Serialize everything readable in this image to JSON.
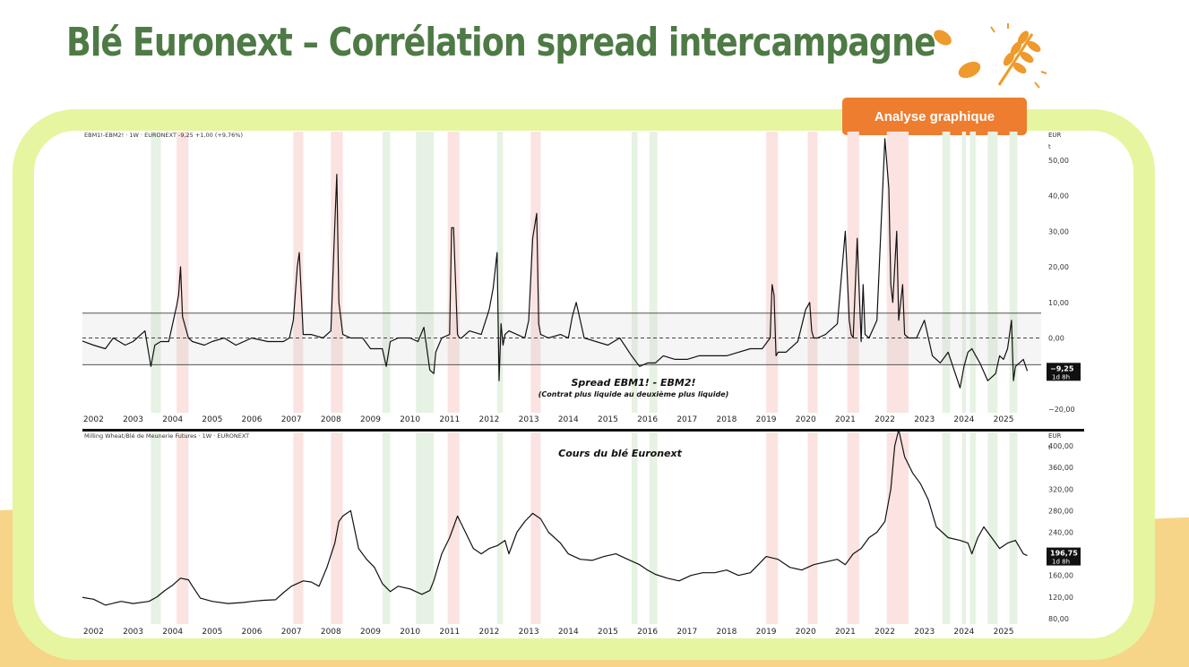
{
  "slide": {
    "title": "Blé Euronext – Corrélation spread intercampagne",
    "badge": "Analyse graphique",
    "colors": {
      "title": "#4e7a45",
      "frame": "#e6f5a0",
      "badge": "#ee7d2f",
      "wave": "#f7d588",
      "logo": "#ee9a2c"
    },
    "icons": [
      "leaf-icon",
      "wheat-icon"
    ]
  },
  "chart_data": [
    {
      "type": "line",
      "header": "EBM1!-EBM2! · 1W · EURONEXT  -9,25  +1,00 (+9,76%)",
      "title": "Spread EBM1! - EBM2!",
      "subtitle": "(Contrat plus liquide au deuxième plus liquide)",
      "unit_label": "EUR",
      "unit_sub": "t",
      "ylim": [
        -21,
        58
      ],
      "yticks": [
        50,
        40,
        30,
        20,
        10,
        0,
        -20
      ],
      "ytick_labels": [
        "50,00",
        "40,00",
        "30,00",
        "20,00",
        "10,00",
        "0,00",
        "−20,00"
      ],
      "band": [
        -7.5,
        7
      ],
      "zero_line": 0,
      "last_label": "−9,25",
      "last_sub": "1d 8h",
      "last_value": -9.25,
      "series": [
        {
          "x": [
            2001.5,
            2002.0,
            2002.3,
            2002.5,
            2002.8,
            2003.0,
            2003.3,
            2003.45,
            2003.55,
            2003.7,
            2003.9,
            2004.1,
            2004.15,
            2004.2,
            2004.25,
            2004.3,
            2004.4,
            2004.5,
            2004.8,
            2005.0,
            2005.3,
            2005.6,
            2006.0,
            2006.4,
            2006.8,
            2006.95,
            2007.05,
            2007.15,
            2007.2,
            2007.3,
            2007.5,
            2007.8,
            2008.0,
            2008.1,
            2008.15,
            2008.2,
            2008.3,
            2008.5,
            2008.8,
            2009.0,
            2009.3,
            2009.4,
            2009.5,
            2009.7,
            2010.0,
            2010.2,
            2010.35,
            2010.5,
            2010.6,
            2010.65,
            2010.8,
            2011.0,
            2011.05,
            2011.1,
            2011.2,
            2011.25,
            2011.3,
            2011.5,
            2011.8,
            2012.0,
            2012.1,
            2012.2,
            2012.25,
            2012.3,
            2012.35,
            2012.4,
            2012.5,
            2012.7,
            2012.9,
            2013.0,
            2013.1,
            2013.2,
            2013.25,
            2013.3,
            2013.5,
            2013.8,
            2014.0,
            2014.1,
            2014.2,
            2014.4,
            2014.7,
            2015.0,
            2015.3,
            2015.6,
            2015.8,
            2016.0,
            2016.2,
            2016.4,
            2016.7,
            2017.0,
            2017.3,
            2017.6,
            2018.0,
            2018.3,
            2018.6,
            2018.9,
            2019.1,
            2019.15,
            2019.2,
            2019.25,
            2019.3,
            2019.5,
            2019.8,
            2020.0,
            2020.1,
            2020.15,
            2020.2,
            2020.3,
            2020.5,
            2020.8,
            2021.0,
            2021.1,
            2021.15,
            2021.2,
            2021.3,
            2021.4,
            2021.45,
            2021.5,
            2021.6,
            2021.8,
            2022.0,
            2022.1,
            2022.15,
            2022.2,
            2022.3,
            2022.35,
            2022.45,
            2022.5,
            2022.6,
            2022.8,
            2023.0,
            2023.2,
            2023.4,
            2023.6,
            2023.9,
            2024.0,
            2024.1,
            2024.2,
            2024.3,
            2024.4,
            2024.6,
            2024.8,
            2024.9,
            2025.0,
            2025.1,
            2025.2,
            2025.25,
            2025.3,
            2025.4,
            2025.5,
            2025.6
          ],
          "y": [
            0,
            -2,
            -3,
            0,
            -2,
            -1,
            2,
            -8,
            -2,
            -1,
            -1,
            9,
            12,
            20,
            6,
            4,
            0,
            -1,
            -2,
            -1,
            0,
            -2,
            0,
            -1,
            -1,
            0,
            5,
            20,
            24,
            1,
            1,
            0,
            2,
            32,
            46,
            10,
            1,
            0,
            0,
            -3,
            -3,
            -8,
            -1,
            0,
            0,
            -1,
            3,
            -9,
            -10,
            -4,
            0,
            1,
            31,
            31,
            1,
            0,
            0,
            2,
            1,
            8,
            14,
            24,
            -12,
            4,
            -2,
            1,
            2,
            1,
            0,
            5,
            28,
            35,
            4,
            1,
            0,
            1,
            0,
            6,
            10,
            0,
            -1,
            -2,
            0,
            -5,
            -8,
            -7,
            -7,
            -5,
            -6,
            -6,
            -5,
            -5,
            -5,
            -4,
            -3,
            -3,
            0,
            15,
            12,
            -5,
            -4,
            -4,
            -1,
            8,
            10,
            2,
            0,
            0,
            1,
            4,
            30,
            5,
            1,
            0,
            28,
            -1,
            15,
            1,
            0,
            5,
            56,
            42,
            15,
            10,
            30,
            5,
            15,
            1,
            0,
            0,
            5,
            -5,
            -7,
            -4,
            -14,
            -8,
            -4,
            -3,
            -5,
            -7,
            -12,
            -10,
            -5,
            -6,
            -3,
            5,
            -12,
            -8,
            -7,
            -6,
            -9.25
          ]
        }
      ]
    },
    {
      "type": "line",
      "header": "Milling Wheat/Blé de Meunerie Futures · 1W · EURONEXT",
      "title": "Cours du blé Euronext",
      "unit_label": "EUR",
      "unit_sub": "t",
      "ylim": [
        70,
        425
      ],
      "yticks": [
        400,
        360,
        320,
        280,
        240,
        160,
        120,
        80
      ],
      "ytick_labels": [
        "400,00",
        "360,00",
        "320,00",
        "280,00",
        "240,00",
        "160,00",
        "120,00",
        "80,00"
      ],
      "last_label": "196,75",
      "last_sub": "1d 8h",
      "last_value": 196.75,
      "series": [
        {
          "x": [
            2001.5,
            2002.0,
            2002.3,
            2002.7,
            2003.0,
            2003.4,
            2003.6,
            2003.8,
            2004.0,
            2004.2,
            2004.4,
            2004.5,
            2004.7,
            2005.0,
            2005.4,
            2005.8,
            2006.0,
            2006.3,
            2006.6,
            2006.8,
            2007.0,
            2007.3,
            2007.5,
            2007.7,
            2007.9,
            2008.1,
            2008.2,
            2008.3,
            2008.5,
            2008.7,
            2008.9,
            2009.1,
            2009.3,
            2009.5,
            2009.7,
            2010.0,
            2010.3,
            2010.5,
            2010.6,
            2010.8,
            2011.0,
            2011.1,
            2011.2,
            2011.4,
            2011.6,
            2011.8,
            2012.0,
            2012.2,
            2012.4,
            2012.5,
            2012.7,
            2012.9,
            2013.1,
            2013.3,
            2013.5,
            2013.8,
            2014.0,
            2014.3,
            2014.6,
            2014.9,
            2015.2,
            2015.5,
            2015.8,
            2016.0,
            2016.2,
            2016.5,
            2016.8,
            2017.1,
            2017.4,
            2017.7,
            2018.0,
            2018.3,
            2018.6,
            2018.8,
            2019.0,
            2019.3,
            2019.6,
            2019.9,
            2020.2,
            2020.5,
            2020.8,
            2021.0,
            2021.2,
            2021.4,
            2021.6,
            2021.8,
            2022.0,
            2022.15,
            2022.25,
            2022.35,
            2022.5,
            2022.7,
            2022.9,
            2023.1,
            2023.3,
            2023.6,
            2023.9,
            2024.1,
            2024.2,
            2024.35,
            2024.5,
            2024.7,
            2024.9,
            2025.1,
            2025.3,
            2025.5,
            2025.6
          ],
          "y": [
            122,
            116,
            105,
            112,
            108,
            112,
            120,
            132,
            142,
            155,
            152,
            140,
            118,
            112,
            108,
            110,
            112,
            114,
            115,
            128,
            140,
            150,
            148,
            140,
            175,
            220,
            260,
            270,
            280,
            210,
            190,
            175,
            145,
            130,
            140,
            135,
            125,
            132,
            150,
            200,
            230,
            250,
            270,
            240,
            210,
            200,
            210,
            215,
            225,
            200,
            240,
            260,
            275,
            265,
            240,
            220,
            200,
            190,
            188,
            195,
            200,
            190,
            180,
            170,
            162,
            155,
            150,
            160,
            165,
            165,
            170,
            160,
            165,
            180,
            195,
            190,
            175,
            170,
            180,
            185,
            190,
            180,
            200,
            210,
            230,
            240,
            260,
            320,
            400,
            430,
            380,
            350,
            330,
            300,
            250,
            230,
            225,
            220,
            200,
            230,
            250,
            230,
            210,
            220,
            225,
            200,
            196.75
          ]
        }
      ]
    }
  ],
  "shading": {
    "green": [
      [
        2003.45,
        2003.7
      ],
      [
        2009.3,
        2009.5
      ],
      [
        2010.15,
        2010.6
      ],
      [
        2012.2,
        2012.35
      ],
      [
        2015.6,
        2015.75
      ],
      [
        2016.05,
        2016.25
      ],
      [
        2023.45,
        2023.65
      ],
      [
        2023.95,
        2024.05
      ],
      [
        2024.15,
        2024.3
      ],
      [
        2024.6,
        2024.85
      ],
      [
        2025.15,
        2025.35
      ]
    ],
    "red": [
      [
        2004.1,
        2004.4
      ],
      [
        2007.05,
        2007.3
      ],
      [
        2008.0,
        2008.3
      ],
      [
        2010.95,
        2011.25
      ],
      [
        2013.05,
        2013.3
      ],
      [
        2019.0,
        2019.3
      ],
      [
        2020.05,
        2020.3
      ],
      [
        2021.05,
        2021.35
      ],
      [
        2022.05,
        2022.6
      ]
    ]
  },
  "x_axis": {
    "labels": [
      "2002",
      "2003",
      "2004",
      "2005",
      "2006",
      "2007",
      "2008",
      "2009",
      "2010",
      "2011",
      "2012",
      "2013",
      "2014",
      "2015",
      "2016",
      "2017",
      "2018",
      "2019",
      "2020",
      "2021",
      "2022",
      "2023",
      "2024",
      "2025"
    ],
    "positions": [
      2002,
      2003,
      2004,
      2005,
      2006,
      2007,
      2008,
      2009,
      2010,
      2011,
      2012,
      2013,
      2014,
      2015,
      2016,
      2017,
      2018,
      2019,
      2020,
      2021,
      2022,
      2023,
      2024,
      2025
    ],
    "range": [
      2001.72,
      2025.95
    ]
  }
}
